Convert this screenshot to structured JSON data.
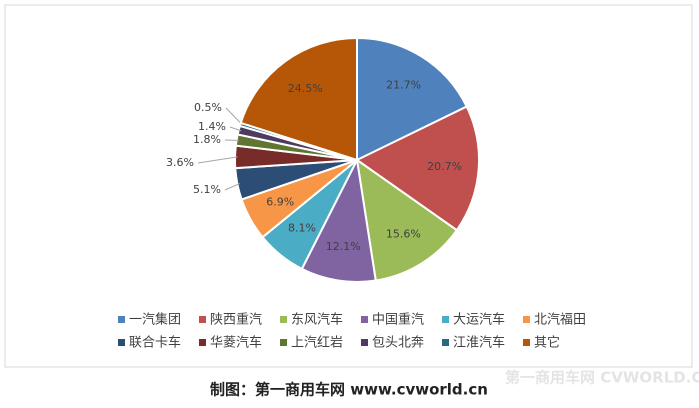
{
  "chart_data": {
    "type": "pie",
    "categories": [
      "一汽集团",
      "陕西重汽",
      "东风汽车",
      "中国重汽",
      "大运汽车",
      "北汽福田",
      "联合卡车",
      "华菱汽车",
      "上汽红岩",
      "包头北奔",
      "江淮汽车",
      "其它"
    ],
    "values": [
      21.7,
      20.7,
      15.6,
      12.1,
      8.1,
      6.9,
      5.1,
      3.6,
      1.8,
      1.4,
      0.5,
      24.5
    ],
    "value_labels": [
      "21.7%",
      "20.7%",
      "15.6%",
      "12.1%",
      "8.1%",
      "6.9%",
      "5.1%",
      "3.6%",
      "1.8%",
      "1.4%",
      "0.5%",
      "24.5%"
    ],
    "colors": [
      "#4f81bd",
      "#c0504d",
      "#9bbb59",
      "#8064a2",
      "#4bacc6",
      "#f79646",
      "#2c4d75",
      "#772c2a",
      "#5f7530",
      "#4d3b62",
      "#276a7c",
      "#b65708"
    ],
    "legend": "bottom",
    "caption": "制图：第一商用车网 www.cvworld.cn",
    "watermark": "第一商用车网 CVWORLD.CN"
  }
}
